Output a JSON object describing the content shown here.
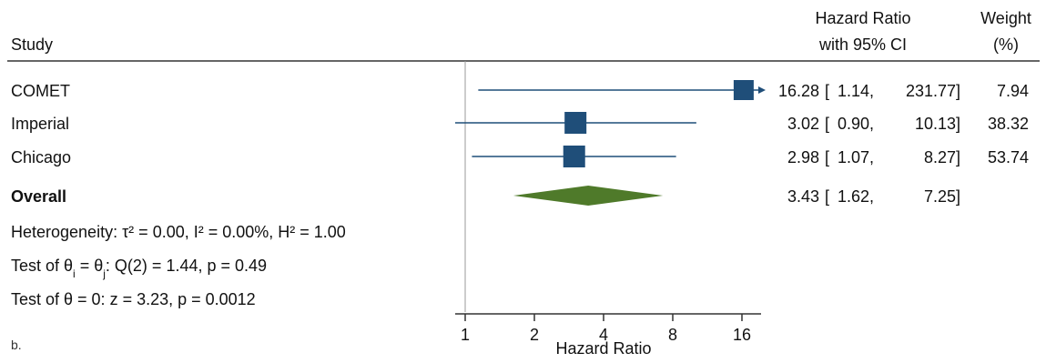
{
  "panel_label": "b.",
  "header": {
    "study_label": "Study",
    "hr_label_line1": "Hazard Ratio",
    "hr_label_line2": "with 95% CI",
    "weight_label_line1": "Weight",
    "weight_label_line2": "(%)"
  },
  "stats": {
    "heterogeneity": "Heterogeneity: τ² = 0.00, I² = 0.00%, H² = 1.00",
    "test_q_prefix": "Test of θ",
    "test_q_sub_i": "i",
    "test_q_mid": " = θ",
    "test_q_sub_j": "j",
    "test_q_suffix": ": Q(2) = 1.44, p = 0.49",
    "test_z": "Test of θ = 0: z = 3.23, p = 0.0012"
  },
  "chart_data": {
    "type": "forest",
    "xlabel": "Hazard Ratio",
    "xscale": "log",
    "xticks": [
      1,
      2,
      4,
      8,
      16
    ],
    "xtick_labels": [
      "1",
      "2",
      "4",
      "8",
      "16"
    ],
    "null_line": 1,
    "studies": [
      {
        "name": "COMET",
        "hr": 16.28,
        "lo": 1.14,
        "hi": 231.77,
        "weight": 7.94,
        "hr_text": "16.28",
        "lo_text": "1.14,",
        "hi_text": "231.77]",
        "weight_text": "7.94",
        "arrow_right": true
      },
      {
        "name": "Imperial",
        "hr": 3.02,
        "lo": 0.9,
        "hi": 10.13,
        "weight": 38.32,
        "hr_text": "3.02",
        "lo_text": "0.90,",
        "hi_text": "10.13]",
        "weight_text": "38.32",
        "arrow_right": false
      },
      {
        "name": "Chicago",
        "hr": 2.98,
        "lo": 1.07,
        "hi": 8.27,
        "weight": 53.74,
        "hr_text": "2.98",
        "lo_text": "1.07,",
        "hi_text": "8.27]",
        "weight_text": "53.74",
        "arrow_right": false
      }
    ],
    "overall": {
      "name": "Overall",
      "hr": 3.43,
      "lo": 1.62,
      "hi": 7.25,
      "hr_text": "3.43",
      "lo_text": "1.62,",
      "hi_text": "7.25]"
    },
    "colors": {
      "marker": "#1f4e79",
      "ci_line": "#1f4e79",
      "diamond": "#4f7a2a",
      "axis": "#333333",
      "null_line": "#999999"
    }
  }
}
